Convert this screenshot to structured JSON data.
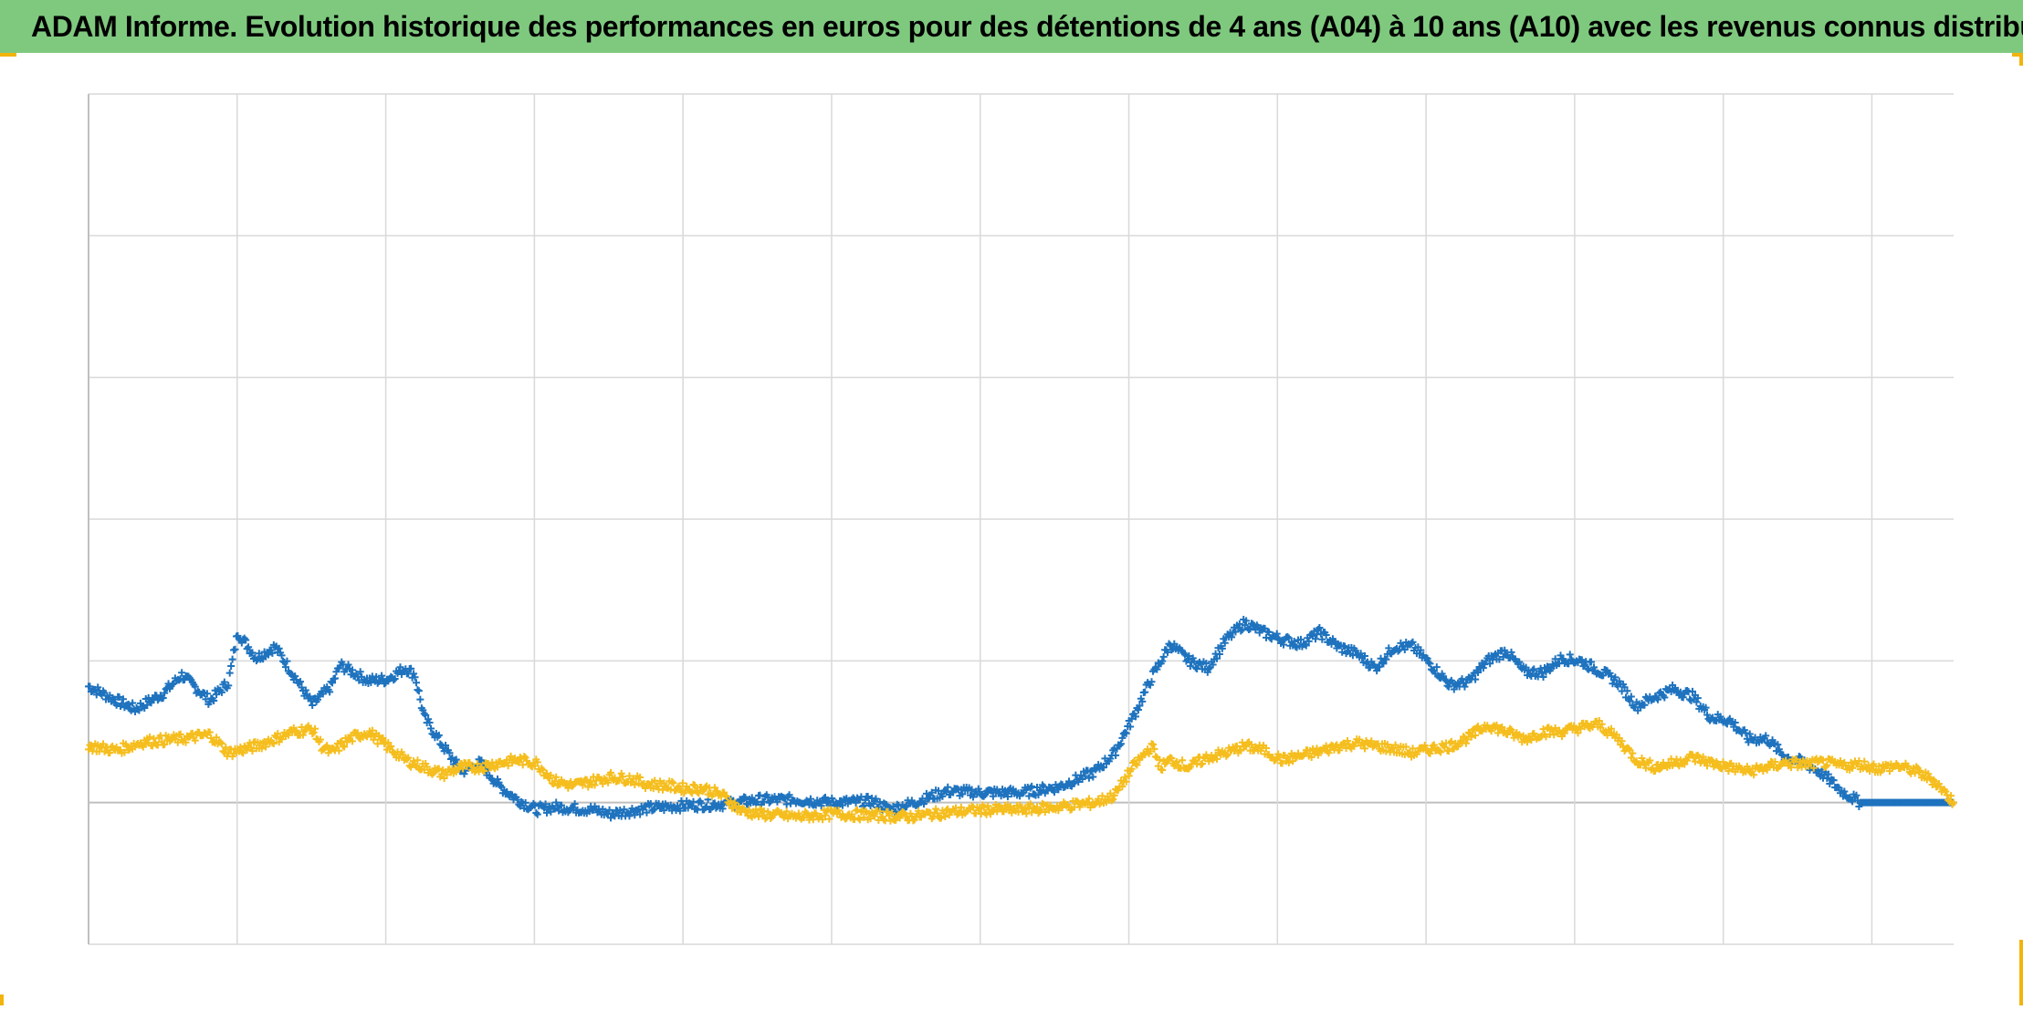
{
  "title": "ADAM Informe. Evolution historique des performances en euros pour des détentions de 4 ans (A04) à 10 ans (A10) avec les revenus connus distribués",
  "colors": {
    "title_bg": "#7fc97f",
    "series_blue": "#1f73be",
    "series_yellow": "#f5be1e",
    "grid": "#d9d9d9",
    "zero_line": "#bfbfbf",
    "corner_marks": "#f2b40c"
  },
  "chart_data": {
    "type": "scatter",
    "marker": "plus",
    "title": "",
    "xlabel": "",
    "ylabel": "",
    "xlim": [
      0,
      100
    ],
    "ylim": [
      -1,
      5
    ],
    "grid": true,
    "legend": "none",
    "series": [
      {
        "color": "#1f73be",
        "points": [
          [
            0,
            0.82
          ],
          [
            1.5,
            0.72
          ],
          [
            2.5,
            0.66
          ],
          [
            4,
            0.77
          ],
          [
            5,
            0.9
          ],
          [
            6.5,
            0.72
          ],
          [
            7.5,
            0.85
          ],
          [
            8,
            1.2
          ],
          [
            9,
            1.02
          ],
          [
            10,
            1.1
          ],
          [
            11,
            0.9
          ],
          [
            12,
            0.69
          ],
          [
            13,
            0.82
          ],
          [
            13.5,
            0.97
          ],
          [
            15,
            0.86
          ],
          [
            16,
            0.87
          ],
          [
            17,
            0.95
          ],
          [
            17.5,
            0.9
          ],
          [
            18,
            0.6
          ],
          [
            19,
            0.4
          ],
          [
            20,
            0.22
          ],
          [
            21,
            0.28
          ],
          [
            22,
            0.12
          ],
          [
            23,
            0.02
          ],
          [
            24,
            -0.05
          ],
          [
            25,
            -0.03
          ],
          [
            27,
            -0.05
          ],
          [
            28,
            -0.08
          ],
          [
            30,
            -0.04
          ],
          [
            32,
            -0.02
          ],
          [
            34,
            -0.01
          ],
          [
            36,
            0.02
          ],
          [
            38,
            0.02
          ],
          [
            40,
            0.0
          ],
          [
            42,
            0.01
          ],
          [
            43,
            -0.05
          ],
          [
            44,
            -0.01
          ],
          [
            46,
            0.08
          ],
          [
            48,
            0.07
          ],
          [
            50,
            0.07
          ],
          [
            52,
            0.11
          ],
          [
            54,
            0.22
          ],
          [
            55,
            0.35
          ],
          [
            56,
            0.6
          ],
          [
            57,
            0.88
          ],
          [
            57.5,
            1.0
          ],
          [
            58,
            1.12
          ],
          [
            59,
            1.0
          ],
          [
            60,
            0.95
          ],
          [
            61,
            1.15
          ],
          [
            62,
            1.27
          ],
          [
            63,
            1.2
          ],
          [
            64,
            1.15
          ],
          [
            65,
            1.12
          ],
          [
            66,
            1.2
          ],
          [
            67,
            1.1
          ],
          [
            68,
            1.05
          ],
          [
            69,
            0.95
          ],
          [
            70,
            1.1
          ],
          [
            71,
            1.1
          ],
          [
            72,
            0.97
          ],
          [
            73,
            0.83
          ],
          [
            74,
            0.85
          ],
          [
            75,
            1.0
          ],
          [
            76,
            1.07
          ],
          [
            77,
            0.92
          ],
          [
            78,
            0.92
          ],
          [
            79,
            1.02
          ],
          [
            80,
            1.0
          ],
          [
            81,
            0.93
          ],
          [
            82,
            0.85
          ],
          [
            83,
            0.68
          ],
          [
            84,
            0.75
          ],
          [
            85,
            0.8
          ],
          [
            86,
            0.75
          ],
          [
            87,
            0.6
          ],
          [
            88,
            0.58
          ],
          [
            89,
            0.45
          ],
          [
            90,
            0.45
          ],
          [
            91,
            0.32
          ],
          [
            92,
            0.28
          ],
          [
            93,
            0.2
          ],
          [
            94,
            0.08
          ],
          [
            95,
            0.0
          ],
          [
            96,
            0.0
          ],
          [
            98,
            0.0
          ],
          [
            100,
            0.0
          ]
        ]
      },
      {
        "color": "#f5be1e",
        "points": [
          [
            0,
            0.4
          ],
          [
            1.5,
            0.37
          ],
          [
            3,
            0.43
          ],
          [
            5,
            0.45
          ],
          [
            6.5,
            0.48
          ],
          [
            7.5,
            0.35
          ],
          [
            9,
            0.4
          ],
          [
            10,
            0.45
          ],
          [
            11,
            0.5
          ],
          [
            12,
            0.52
          ],
          [
            12.5,
            0.4
          ],
          [
            13,
            0.35
          ],
          [
            14,
            0.45
          ],
          [
            15,
            0.5
          ],
          [
            16,
            0.4
          ],
          [
            17,
            0.3
          ],
          [
            18,
            0.25
          ],
          [
            19,
            0.2
          ],
          [
            20,
            0.25
          ],
          [
            21,
            0.25
          ],
          [
            22,
            0.28
          ],
          [
            23,
            0.3
          ],
          [
            24,
            0.28
          ],
          [
            25,
            0.15
          ],
          [
            26,
            0.12
          ],
          [
            27,
            0.15
          ],
          [
            28,
            0.18
          ],
          [
            29,
            0.17
          ],
          [
            30,
            0.13
          ],
          [
            31,
            0.12
          ],
          [
            32,
            0.1
          ],
          [
            33,
            0.1
          ],
          [
            34,
            0.05
          ],
          [
            35,
            -0.06
          ],
          [
            36,
            -0.08
          ],
          [
            38,
            -0.1
          ],
          [
            40,
            -0.08
          ],
          [
            42,
            -0.09
          ],
          [
            44,
            -0.1
          ],
          [
            46,
            -0.07
          ],
          [
            48,
            -0.05
          ],
          [
            50,
            -0.05
          ],
          [
            52,
            -0.03
          ],
          [
            54,
            0.0
          ],
          [
            55,
            0.05
          ],
          [
            56,
            0.25
          ],
          [
            57,
            0.4
          ],
          [
            57.5,
            0.25
          ],
          [
            58,
            0.3
          ],
          [
            59,
            0.25
          ],
          [
            60,
            0.32
          ],
          [
            61,
            0.35
          ],
          [
            62,
            0.4
          ],
          [
            63,
            0.37
          ],
          [
            64,
            0.3
          ],
          [
            65,
            0.33
          ],
          [
            66,
            0.36
          ],
          [
            67,
            0.4
          ],
          [
            68,
            0.42
          ],
          [
            69,
            0.4
          ],
          [
            70,
            0.38
          ],
          [
            71,
            0.35
          ],
          [
            72,
            0.38
          ],
          [
            73,
            0.4
          ],
          [
            74,
            0.46
          ],
          [
            75,
            0.55
          ],
          [
            76,
            0.5
          ],
          [
            77,
            0.45
          ],
          [
            78,
            0.5
          ],
          [
            79,
            0.5
          ],
          [
            80,
            0.53
          ],
          [
            81,
            0.55
          ],
          [
            82,
            0.45
          ],
          [
            83,
            0.3
          ],
          [
            84,
            0.25
          ],
          [
            85,
            0.28
          ],
          [
            86,
            0.32
          ],
          [
            87,
            0.28
          ],
          [
            88,
            0.25
          ],
          [
            89,
            0.22
          ],
          [
            90,
            0.25
          ],
          [
            91,
            0.28
          ],
          [
            92,
            0.27
          ],
          [
            93,
            0.28
          ],
          [
            94,
            0.26
          ],
          [
            95,
            0.27
          ],
          [
            96,
            0.24
          ],
          [
            97,
            0.26
          ],
          [
            98,
            0.22
          ],
          [
            99,
            0.15
          ],
          [
            100,
            0.0
          ]
        ]
      }
    ]
  }
}
